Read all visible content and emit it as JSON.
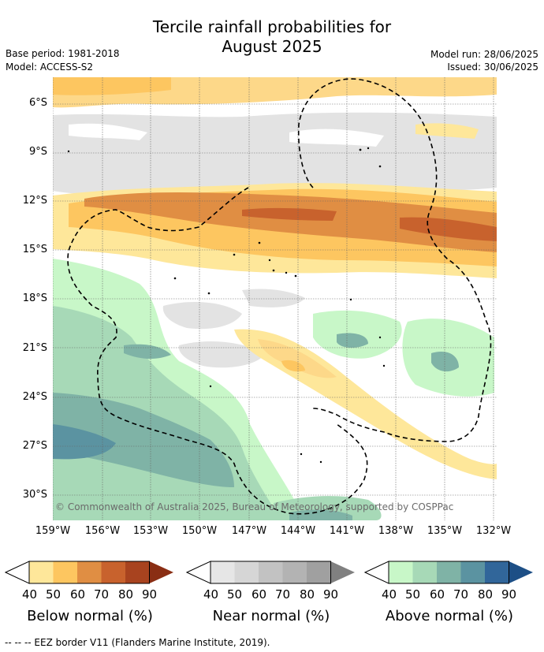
{
  "title_line1": "Tercile rainfall probabilities for",
  "title_line2": "August 2025",
  "base_period": "Base period: 1981-2018",
  "model": "Model: ACCESS-S2",
  "model_run": "Model run: 28/06/2025",
  "issued": "Issued: 30/06/2025",
  "copyright": "© Commonwealth of Australia 2025, Bureau of Meteorology, supported by COSPPac",
  "footnote": "--  --  -- EEZ border V11 (Flanders Marine Institute, 2019).",
  "lat_ticks": [
    "6°S",
    "9°S",
    "12°S",
    "15°S",
    "18°S",
    "21°S",
    "24°S",
    "27°S",
    "30°S"
  ],
  "lon_ticks": [
    "159°W",
    "156°W",
    "153°W",
    "150°W",
    "147°W",
    "144°W",
    "141°W",
    "138°W",
    "135°W",
    "132°W"
  ],
  "colorbars": [
    {
      "title": "Below normal (%)",
      "ticks": [
        "40",
        "50",
        "60",
        "70",
        "80",
        "90"
      ],
      "colors": [
        "#fee79a",
        "#fdc660",
        "#e08e43",
        "#c8622d",
        "#a8431f",
        "#8a2e14"
      ]
    },
    {
      "title": "Near normal (%)",
      "ticks": [
        "40",
        "50",
        "60",
        "70",
        "80",
        "90"
      ],
      "colors": [
        "#e6e6e6",
        "#d6d6d6",
        "#c2c2c2",
        "#b3b3b3",
        "#a0a0a0",
        "#808080"
      ]
    },
    {
      "title": "Above normal (%)",
      "ticks": [
        "40",
        "50",
        "60",
        "70",
        "80",
        "90"
      ],
      "colors": [
        "#c8f7c8",
        "#a7d9b7",
        "#7fb3a6",
        "#5b93a1",
        "#31669a",
        "#1d4f86"
      ]
    }
  ]
}
